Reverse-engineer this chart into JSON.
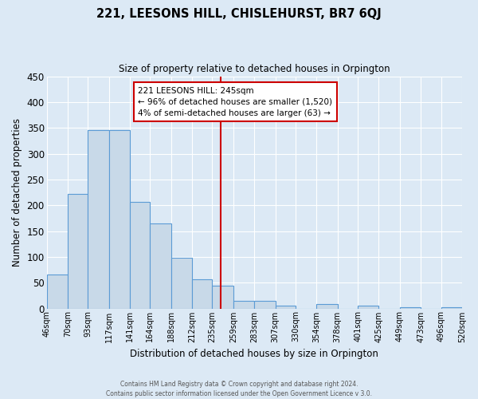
{
  "title": "221, LEESONS HILL, CHISLEHURST, BR7 6QJ",
  "subtitle": "Size of property relative to detached houses in Orpington",
  "xlabel": "Distribution of detached houses by size in Orpington",
  "ylabel": "Number of detached properties",
  "bar_edges": [
    46,
    70,
    93,
    117,
    141,
    164,
    188,
    212,
    235,
    259,
    283,
    307,
    330,
    354,
    378,
    401,
    425,
    449,
    473,
    496,
    520
  ],
  "bar_heights": [
    65,
    222,
    345,
    345,
    207,
    165,
    99,
    57,
    44,
    15,
    15,
    6,
    0,
    8,
    0,
    5,
    0,
    3,
    0,
    2
  ],
  "bar_color": "#c8d9e8",
  "bar_edgecolor": "#5b9bd5",
  "vline_x": 245,
  "vline_color": "#cc0000",
  "ylim": [
    0,
    450
  ],
  "yticks": [
    0,
    50,
    100,
    150,
    200,
    250,
    300,
    350,
    400,
    450
  ],
  "annotation_title": "221 LEESONS HILL: 245sqm",
  "annotation_line1": "← 96% of detached houses are smaller (1,520)",
  "annotation_line2": "4% of semi-detached houses are larger (63) →",
  "annotation_box_color": "#ffffff",
  "annotation_box_edgecolor": "#cc0000",
  "footer1": "Contains HM Land Registry data © Crown copyright and database right 2024.",
  "footer2": "Contains public sector information licensed under the Open Government Licence v 3.0.",
  "background_color": "#dce9f5",
  "plot_bg_color": "#dce9f5",
  "tick_labels": [
    "46sqm",
    "70sqm",
    "93sqm",
    "117sqm",
    "141sqm",
    "164sqm",
    "188sqm",
    "212sqm",
    "235sqm",
    "259sqm",
    "283sqm",
    "307sqm",
    "330sqm",
    "354sqm",
    "378sqm",
    "401sqm",
    "425sqm",
    "449sqm",
    "473sqm",
    "496sqm",
    "520sqm"
  ]
}
